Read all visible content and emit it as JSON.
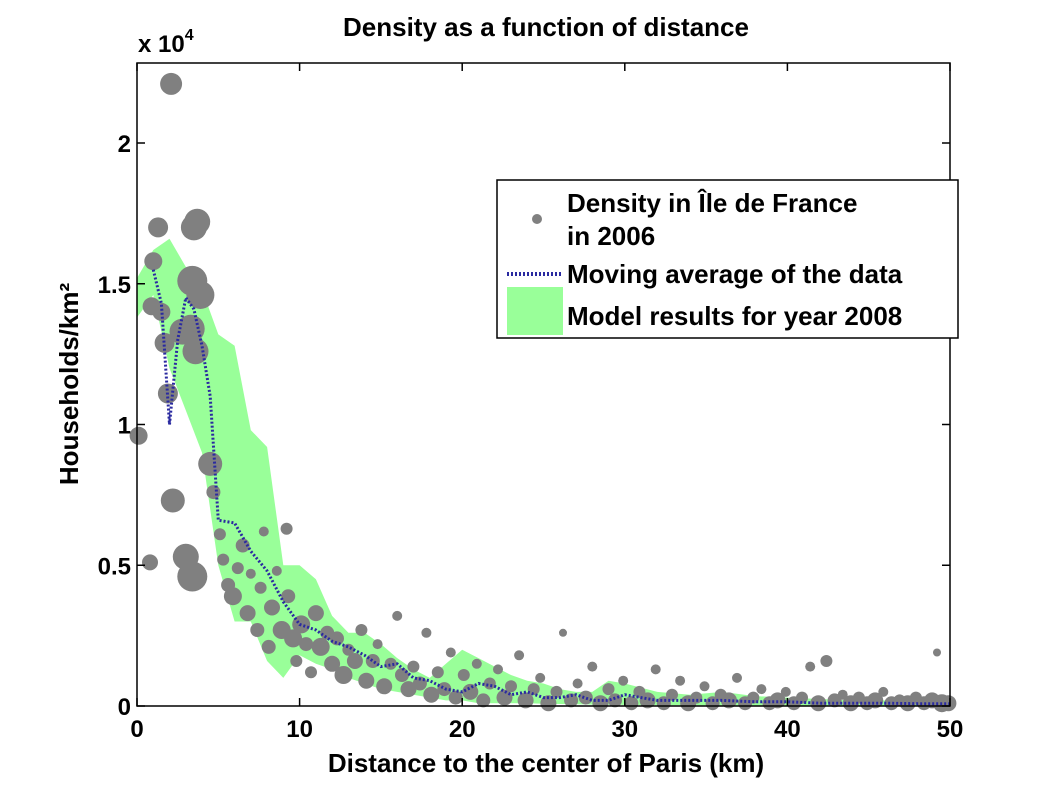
{
  "chart_data": {
    "type": "scatter",
    "title": "Density as a function of distance",
    "xlabel": "Distance to the center of Paris (km)",
    "ylabel": "Households/km²",
    "y_multiplier_label": "x 10",
    "y_multiplier_exponent": "4",
    "xlim": [
      0,
      50
    ],
    "ylim": [
      0,
      22000
    ],
    "x_ticks": [
      0,
      10,
      20,
      30,
      40,
      50
    ],
    "x_tick_labels": [
      "0",
      "10",
      "20",
      "30",
      "40",
      "50"
    ],
    "y_ticks": [
      0,
      5000,
      10000,
      15000,
      20000
    ],
    "y_tick_labels": [
      "0",
      "0.5",
      "1",
      "1.5",
      "2"
    ],
    "grid": false,
    "legend_position": "top-right",
    "legend": [
      {
        "line1": "Density in Île de France",
        "line2": "in 2006"
      },
      {
        "line1": "Moving average of the data",
        "line2": ""
      },
      {
        "line1": "Model results for year 2008",
        "line2": ""
      }
    ],
    "colors": {
      "scatter": "#808080",
      "moving_average": "#2a2aa0",
      "model_band": "#99ff99"
    },
    "series": [
      {
        "name": "Density in Île de France in 2006",
        "kind": "scatter",
        "points": [
          [
            0.1,
            9600,
            9
          ],
          [
            0.8,
            5100,
            8
          ],
          [
            0.9,
            14200,
            9
          ],
          [
            1.0,
            15800,
            9
          ],
          [
            1.3,
            17000,
            10
          ],
          [
            1.5,
            14000,
            9
          ],
          [
            1.7,
            12900,
            10
          ],
          [
            1.9,
            11100,
            10
          ],
          [
            2.1,
            22100,
            11
          ],
          [
            2.2,
            7300,
            12
          ],
          [
            2.8,
            13300,
            13
          ],
          [
            3.0,
            5300,
            13
          ],
          [
            3.3,
            13400,
            14
          ],
          [
            3.4,
            15100,
            15
          ],
          [
            3.4,
            4600,
            15
          ],
          [
            3.5,
            17000,
            13
          ],
          [
            3.6,
            12600,
            13
          ],
          [
            3.7,
            17200,
            13
          ],
          [
            3.9,
            14600,
            14
          ],
          [
            4.5,
            8600,
            12
          ],
          [
            4.7,
            7600,
            7
          ],
          [
            5.1,
            6100,
            6
          ],
          [
            5.3,
            5200,
            6
          ],
          [
            5.6,
            4300,
            7
          ],
          [
            5.9,
            3900,
            9
          ],
          [
            6.2,
            4900,
            6
          ],
          [
            6.5,
            5700,
            7
          ],
          [
            6.8,
            3300,
            8
          ],
          [
            7.0,
            4700,
            5
          ],
          [
            7.4,
            2700,
            7
          ],
          [
            7.6,
            4200,
            6
          ],
          [
            7.8,
            6200,
            5
          ],
          [
            8.1,
            2100,
            7
          ],
          [
            8.3,
            3500,
            8
          ],
          [
            8.6,
            4800,
            5
          ],
          [
            8.9,
            2700,
            9
          ],
          [
            9.2,
            6300,
            6
          ],
          [
            9.3,
            3900,
            7
          ],
          [
            9.6,
            2400,
            9
          ],
          [
            9.8,
            1600,
            6
          ],
          [
            10.1,
            2900,
            9
          ],
          [
            10.4,
            2200,
            7
          ],
          [
            10.7,
            1200,
            6
          ],
          [
            11.0,
            3300,
            8
          ],
          [
            11.3,
            2100,
            9
          ],
          [
            11.7,
            2600,
            7
          ],
          [
            12.0,
            1500,
            8
          ],
          [
            12.3,
            2400,
            7
          ],
          [
            12.7,
            1100,
            9
          ],
          [
            13.0,
            2000,
            6
          ],
          [
            13.4,
            1600,
            8
          ],
          [
            13.8,
            2700,
            6
          ],
          [
            14.1,
            900,
            8
          ],
          [
            14.5,
            1600,
            7
          ],
          [
            14.8,
            2200,
            5
          ],
          [
            15.2,
            700,
            8
          ],
          [
            15.6,
            1500,
            6
          ],
          [
            16.0,
            3200,
            5
          ],
          [
            16.3,
            1100,
            7
          ],
          [
            16.7,
            600,
            8
          ],
          [
            17.0,
            1400,
            6
          ],
          [
            17.4,
            800,
            7
          ],
          [
            17.8,
            2600,
            5
          ],
          [
            18.1,
            400,
            8
          ],
          [
            18.5,
            1200,
            6
          ],
          [
            18.9,
            600,
            7
          ],
          [
            19.3,
            1900,
            5
          ],
          [
            19.6,
            300,
            7
          ],
          [
            20.1,
            1100,
            6
          ],
          [
            20.5,
            500,
            8
          ],
          [
            20.9,
            1500,
            5
          ],
          [
            21.3,
            200,
            7
          ],
          [
            21.7,
            800,
            6
          ],
          [
            22.2,
            1300,
            5
          ],
          [
            22.6,
            300,
            8
          ],
          [
            23.0,
            700,
            6
          ],
          [
            23.5,
            1800,
            5
          ],
          [
            23.9,
            200,
            8
          ],
          [
            24.4,
            600,
            6
          ],
          [
            24.8,
            1000,
            5
          ],
          [
            25.3,
            100,
            8
          ],
          [
            25.8,
            500,
            6
          ],
          [
            26.2,
            2600,
            4
          ],
          [
            26.7,
            200,
            7
          ],
          [
            27.1,
            800,
            5
          ],
          [
            27.6,
            300,
            7
          ],
          [
            28.0,
            1400,
            5
          ],
          [
            28.5,
            100,
            8
          ],
          [
            29.0,
            600,
            6
          ],
          [
            29.4,
            200,
            7
          ],
          [
            29.9,
            900,
            5
          ],
          [
            30.4,
            100,
            7
          ],
          [
            30.9,
            500,
            6
          ],
          [
            31.4,
            200,
            8
          ],
          [
            31.9,
            1300,
            5
          ],
          [
            32.4,
            100,
            7
          ],
          [
            32.9,
            400,
            6
          ],
          [
            33.4,
            900,
            5
          ],
          [
            33.9,
            100,
            8
          ],
          [
            34.4,
            300,
            6
          ],
          [
            34.9,
            700,
            5
          ],
          [
            35.4,
            100,
            7
          ],
          [
            35.9,
            400,
            6
          ],
          [
            36.4,
            200,
            8
          ],
          [
            36.9,
            1000,
            5
          ],
          [
            37.4,
            100,
            7
          ],
          [
            37.9,
            300,
            6
          ],
          [
            38.4,
            600,
            5
          ],
          [
            38.9,
            100,
            7
          ],
          [
            39.4,
            200,
            8
          ],
          [
            39.9,
            500,
            5
          ],
          [
            40.4,
            100,
            7
          ],
          [
            40.9,
            300,
            6
          ],
          [
            41.4,
            1400,
            5
          ],
          [
            41.9,
            100,
            8
          ],
          [
            42.4,
            1600,
            6
          ],
          [
            42.9,
            200,
            7
          ],
          [
            43.4,
            400,
            5
          ],
          [
            43.9,
            100,
            8
          ],
          [
            44.4,
            300,
            6
          ],
          [
            44.9,
            100,
            7
          ],
          [
            45.4,
            200,
            8
          ],
          [
            45.9,
            500,
            5
          ],
          [
            46.4,
            100,
            7
          ],
          [
            46.9,
            200,
            6
          ],
          [
            47.4,
            100,
            8
          ],
          [
            47.9,
            300,
            6
          ],
          [
            48.4,
            100,
            7
          ],
          [
            48.9,
            200,
            8
          ],
          [
            49.2,
            1900,
            4
          ],
          [
            49.5,
            100,
            9
          ],
          [
            49.9,
            100,
            8
          ]
        ]
      },
      {
        "name": "Moving average of the data",
        "kind": "line",
        "x": [
          1.0,
          1.5,
          2.0,
          2.5,
          3.0,
          3.5,
          4.0,
          4.5,
          5.0,
          6.0,
          7.0,
          8.0,
          9.0,
          10.0,
          11.0,
          12.0,
          13.0,
          14.0,
          15.0,
          16.0,
          17.0,
          18.0,
          19.0,
          20.0,
          21.0,
          22.0,
          23.0,
          24.0,
          25.0,
          26.0,
          27.0,
          28.0,
          29.0,
          30.0,
          31.0,
          32.0,
          34.0,
          36.0,
          38.0,
          40.0,
          42.0,
          44.0,
          46.0,
          48.0,
          50.0
        ],
        "y": [
          15500,
          14300,
          10000,
          13000,
          14500,
          14100,
          12800,
          11000,
          6600,
          6500,
          5500,
          4800,
          3700,
          2900,
          2700,
          2300,
          2100,
          1800,
          1400,
          1500,
          1000,
          900,
          600,
          500,
          800,
          700,
          400,
          500,
          300,
          300,
          400,
          200,
          200,
          400,
          300,
          200,
          200,
          200,
          150,
          150,
          100,
          100,
          100,
          80,
          80
        ]
      },
      {
        "name": "Model results for year 2008",
        "kind": "band",
        "x": [
          0.0,
          1.0,
          2.0,
          3.0,
          4.0,
          5.0,
          6.0,
          7.0,
          8.0,
          9.0,
          10.0,
          11.0,
          12.0,
          13.0,
          14.0,
          15.0,
          16.0,
          17.0,
          18.0,
          19.0,
          20.0,
          21.0,
          22.0,
          23.0,
          24.0,
          25.0,
          26.0,
          27.0,
          28.0,
          29.0,
          30.0,
          32.0,
          34.0,
          36.0,
          38.0,
          40.0,
          42.0,
          44.0,
          46.0,
          48.0,
          50.0
        ],
        "lower": [
          13800,
          14600,
          12000,
          10500,
          9000,
          5000,
          3000,
          3000,
          1600,
          1000,
          1800,
          1500,
          1300,
          1000,
          800,
          600,
          500,
          400,
          300,
          200,
          200,
          100,
          100,
          100,
          100,
          80,
          70,
          60,
          50,
          40,
          40,
          30,
          30,
          20,
          20,
          20,
          10,
          10,
          10,
          10,
          10
        ],
        "upper": [
          15200,
          16200,
          16600,
          15600,
          14800,
          13200,
          12800,
          9800,
          9200,
          5000,
          5000,
          4500,
          3200,
          2600,
          2600,
          2200,
          1700,
          1300,
          1000,
          1500,
          2000,
          1700,
          1400,
          1100,
          900,
          800,
          600,
          500,
          500,
          900,
          800,
          500,
          400,
          500,
          350,
          300,
          250,
          200,
          200,
          150,
          100
        ]
      }
    ]
  }
}
